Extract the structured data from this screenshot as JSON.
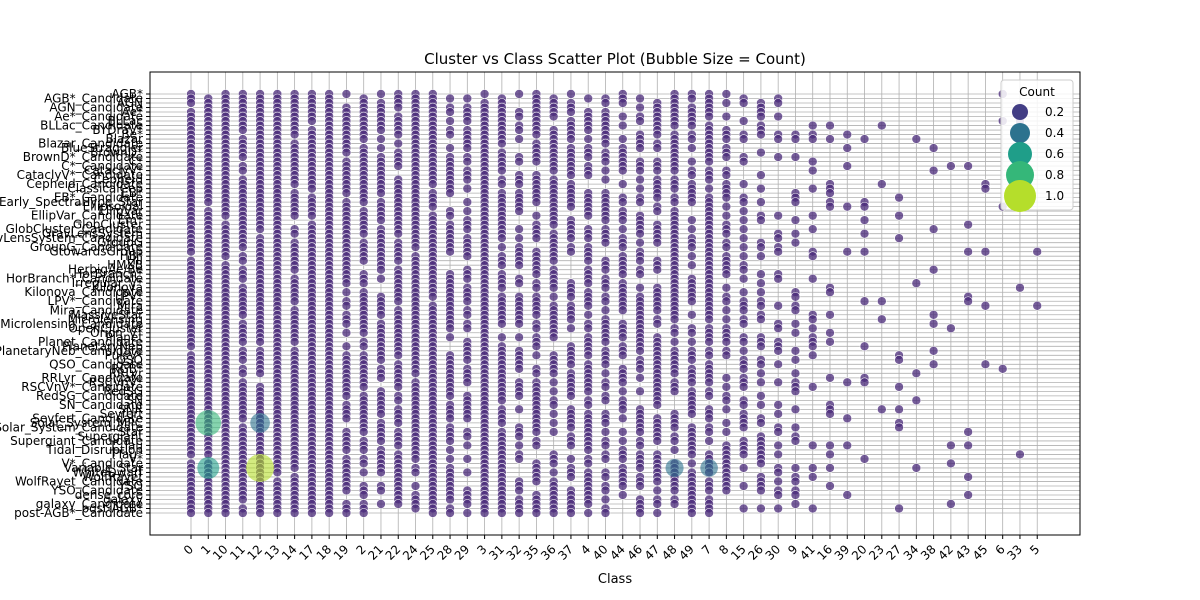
{
  "chart_data": {
    "type": "scatter",
    "title": "Cluster vs Class Scatter Plot (Bubble Size = Count)",
    "xlabel": "Class",
    "ylabel": "",
    "grid": true,
    "x_categories": [
      "0",
      "1",
      "10",
      "11",
      "12",
      "13",
      "14",
      "17",
      "18",
      "19",
      "2",
      "21",
      "22",
      "24",
      "25",
      "28",
      "29",
      "3",
      "31",
      "32",
      "35",
      "36",
      "37",
      "4",
      "40",
      "44",
      "46",
      "47",
      "48",
      "49",
      "7",
      "8",
      "15",
      "26",
      "30",
      "9",
      "41",
      "16",
      "39",
      "20",
      "23",
      "27",
      "34",
      "38",
      "42",
      "43",
      "45",
      "6",
      "33",
      "5"
    ],
    "y_tick_labels": [
      "AGB*",
      "AGB*_Candidate",
      "AGN",
      "AGN_Candidate",
      "Ae*",
      "Ae*_Candidate",
      "BLLac",
      "BLLac_Candidate",
      "BYDraV*",
      "Be*",
      "Blazar",
      "Blazar_Candidate",
      "BlueStraggler",
      "BrownD*",
      "BrownD*_Candidate",
      "C*",
      "C*_Candidate",
      "CataclyV*",
      "CataclyV*_Candidate",
      "Cepheid",
      "Cepheid_Candidate",
      "ClassicalCep",
      "EB*",
      "EB*_Candidate",
      "Early_SpectralType_Star",
      "Ellipsoidal",
      "EllipVar",
      "EllipVar_Candidate",
      "Em*",
      "GlobCluster",
      "GlobCluster_Candidate",
      "GravLensSystem",
      "GravLensSystem_Candidate",
      "GroupG",
      "GroupG_Candidate",
      "GtowardsGroup",
      "HB*",
      "HII",
      "HMXB",
      "HerbigAe/Be",
      "HorBranch*",
      "HorBranch*_Candidate",
      "Irregular_V*",
      "Kilonova",
      "Kilonova_Candidate",
      "LPV*",
      "LPV*_Candidate",
      "Mira",
      "Mira_Candidate",
      "MassiveStar",
      "Microlensing",
      "Microlensing_Candidate",
      "OpenCluster",
      "Orion_V*",
      "Planet",
      "Planet_Candidate",
      "PlanetaryNeb",
      "PlanetaryNeb_Candidate",
      "PulsV*",
      "QSO",
      "QSO_Candidate",
      "RGB*",
      "RRLyr",
      "RRLyr_Candidate",
      "RSCVnV*",
      "RSCVnV*_Candidate",
      "RedSG",
      "RedSG_Candidate",
      "SN",
      "SN_Candidate",
      "SNR",
      "Seyfert",
      "Seyfert_Candidate",
      "Solar_System_MPC",
      "Solar_System_Candidate",
      "Star",
      "Supergiant",
      "Supergiant_Candidate",
      "T_Tau",
      "Tidal_Disruption",
      "TTau*",
      "V*",
      "V*_Candidate",
      "Variable_Star",
      "WhiteDwarf",
      "WolfRayet",
      "WolfRayet_Candidate",
      "YSO",
      "YSO_Candidate",
      "dense_core",
      "galaxy",
      "galaxy_Candidate",
      "post-AGB*",
      "post-AGB*_Candidate"
    ],
    "legend": {
      "title": "Count",
      "placement": "top-right",
      "entries": [
        {
          "label": "0.2",
          "value": 0.2,
          "color": "#433e85"
        },
        {
          "label": "0.4",
          "value": 0.4,
          "color": "#2c728e"
        },
        {
          "label": "0.6",
          "value": 0.6,
          "color": "#1f9e89"
        },
        {
          "label": "0.8",
          "value": 0.8,
          "color": "#35b779"
        },
        {
          "label": "1.0",
          "value": 1.0,
          "color": "#b5de2b"
        }
      ]
    },
    "colormap": "viridis",
    "base_point_color": "#482878",
    "highlight_points": [
      {
        "x": "1",
        "y": "Solar_System_MPC",
        "value": 0.85
      },
      {
        "x": "1",
        "y": "Variable_Star",
        "value": 0.62
      },
      {
        "x": "12",
        "y": "Solar_System_MPC",
        "value": 0.48
      },
      {
        "x": "12",
        "y": "Variable_Star",
        "value": 1.0
      },
      {
        "x": "48",
        "y": "Variable_Star",
        "value": 0.38
      },
      {
        "x": "7",
        "y": "Variable_Star",
        "value": 0.35
      }
    ],
    "column_density": [
      0.93,
      0.98,
      0.96,
      0.86,
      0.96,
      0.98,
      0.93,
      0.94,
      0.98,
      0.84,
      0.8,
      0.8,
      0.82,
      0.94,
      0.96,
      0.72,
      0.68,
      0.98,
      0.82,
      0.66,
      0.72,
      0.76,
      0.7,
      0.8,
      0.76,
      0.72,
      0.7,
      0.8,
      0.86,
      0.68,
      0.8,
      0.58,
      0.46,
      0.4,
      0.36,
      0.3,
      0.26,
      0.22,
      0.16,
      0.1,
      0.06,
      0.06,
      0.05,
      0.06,
      0.05,
      0.07,
      0.05,
      0.05,
      0.05,
      0.02
    ]
  }
}
